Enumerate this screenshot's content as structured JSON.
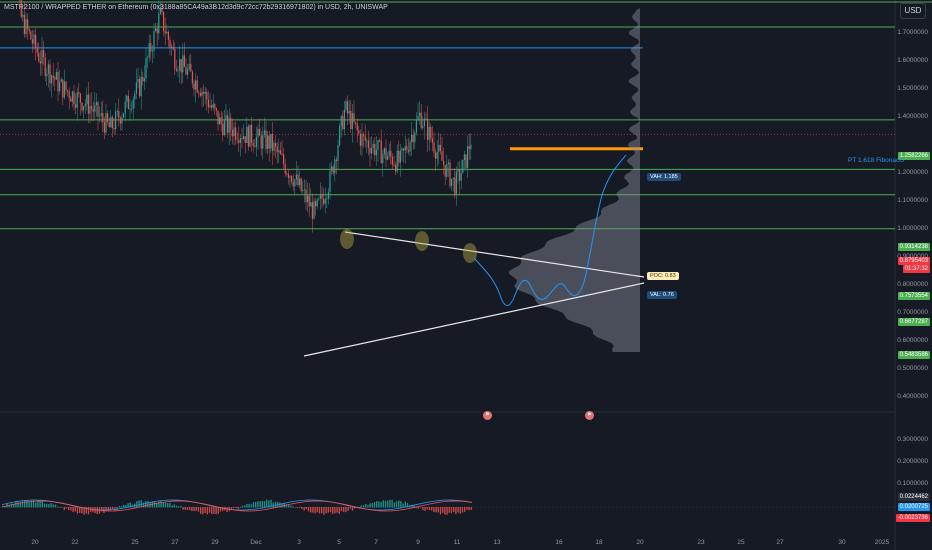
{
  "header": {
    "title": "MSTR2100 / WRAPPED ETHER on Ethereum (0x3188a85CA49a3B12d3d9c72cc72b29316971802) in USD, 2h, UNISWAP",
    "currency_button": "USD"
  },
  "price_axis": {
    "ticks": [
      "1.7000000",
      "1.6000000",
      "1.5000000",
      "1.4000000",
      "1.2000000",
      "1.1000000",
      "1.0000000",
      "0.9000000",
      "0.8000000",
      "0.7000000",
      "0.6000000",
      "0.5000000",
      "0.4000000"
    ],
    "tags": [
      {
        "text": "1.2582266",
        "color": "#4caf50"
      },
      {
        "text": "0.9314238",
        "color": "#4caf50"
      },
      {
        "text": "0.8795403",
        "color": "#f23645"
      },
      {
        "text": "01:37:32",
        "color": "#f23645"
      },
      {
        "text": "0.7573554",
        "color": "#4caf50"
      },
      {
        "text": "0.6677287",
        "color": "#4caf50"
      },
      {
        "text": "0.5483586",
        "color": "#4caf50"
      }
    ]
  },
  "indicator_axis": {
    "ticks": [
      "0.3000000",
      "0.2000000",
      "0.1000000"
    ],
    "tags": [
      {
        "text": "0.0224462",
        "color": "#2a2e39"
      },
      {
        "text": "0.0200725",
        "color": "#2196f3"
      },
      {
        "text": "-0.0023736",
        "color": "#f23645"
      }
    ]
  },
  "time_axis": [
    "20",
    "22",
    "25",
    "27",
    "29",
    "Dec",
    "3",
    "5",
    "7",
    "9",
    "11",
    "13",
    "16",
    "18",
    "20",
    "23",
    "25",
    "27",
    "30",
    "2025"
  ],
  "annotations": {
    "fib_note": "PT 1.618 Fibonacci",
    "vah_label": "VAH: 1.185",
    "poc_label": "POC: 0.83",
    "val_label": "VAL: 0.76"
  },
  "colors": {
    "background": "#161a25",
    "support_line": "#4caf50",
    "up_candle": "#26a69a",
    "down_candle": "#ef5350",
    "projection": "#2196f3",
    "poc": "#ff9800",
    "triangle": "#e8e8e8"
  },
  "icons": [
    "event-flag-icon",
    "event-flag-icon"
  ]
}
